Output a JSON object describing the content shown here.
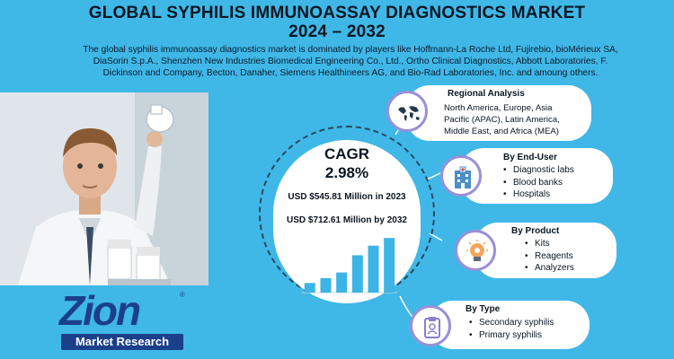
{
  "header": {
    "title_line1": "GLOBAL SYPHILIS IMMUNOASSAY DIAGNOSTICS MARKET",
    "title_line2": "2024 – 2032",
    "intro_line1": "The global syphilis immunoassay diagnostics market is dominated by players like Hoffmann-La Roche Ltd, Fujirebio, bioMérieux SA,",
    "intro_line2": "DiaSorin S.p.A., Shenzhen New Industries Biomedical Engineering Co., Ltd., Ortho Clinical Diagnostics, Abbott Laboratories, F.",
    "intro_line3": "Dickinson and Company, Becton, Danaher, Siemens Healthineers AG, and Bio-Rad Laboratories, Inc. and amoung others."
  },
  "center": {
    "cagr_label": "CAGR",
    "cagr_value": "2.98%",
    "market_2023": "USD $545.81 Million in 2023",
    "market_2032": "USD $712.61 Million  by 2032"
  },
  "regional": {
    "title": "Regional Analysis",
    "line1": "North America, Europe, Asia",
    "line2": "Pacific (APAC), Latin America,",
    "line3": "Middle East, and Africa (MEA)",
    "icon": "world-map-icon"
  },
  "end_user": {
    "title": "By End-User",
    "items": [
      "Diagnostic labs",
      "Blood banks",
      "Hospitals"
    ],
    "icon": "hospital-building-icon"
  },
  "product": {
    "title": "By Product",
    "items": [
      "Kits",
      "Reagents",
      "Analyzers"
    ],
    "icon": "lightbulb-gear-icon"
  },
  "type": {
    "title": "By Type",
    "items": [
      "Secondary syphilis",
      "Primary syphilis"
    ],
    "icon": "clipboard-icon"
  },
  "logo": {
    "word": "Zion",
    "sub": "Market Research",
    "reg": "®"
  },
  "colors": {
    "background": "#3fb8e8",
    "bar": "#3cb4e6",
    "badge_border": "#9b8fd8",
    "logo_blue": "#1c3f8a"
  },
  "chart_data": {
    "type": "bar",
    "values": [
      1,
      1.5,
      2.1,
      3.9,
      4.9,
      5.7
    ],
    "title": "",
    "xlabel": "",
    "ylabel": ""
  }
}
